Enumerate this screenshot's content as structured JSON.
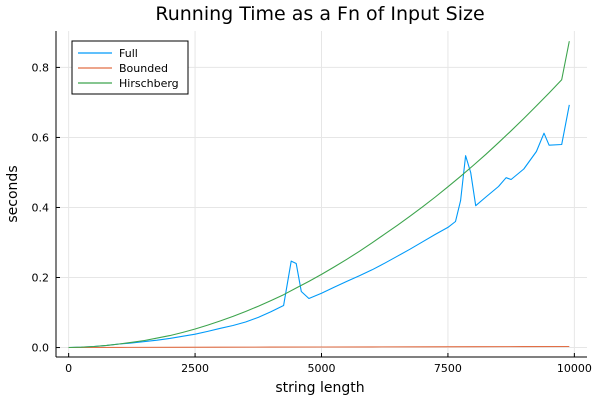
{
  "chart_data": {
    "type": "line",
    "title": "Running Time as a Fn of Input Size",
    "xlabel": "string length",
    "ylabel": "seconds",
    "xlim": [
      -250,
      10250
    ],
    "ylim": [
      -0.027,
      0.904
    ],
    "xticks": [
      0,
      2500,
      5000,
      7500,
      10000
    ],
    "xtick_labels": [
      "0",
      "2500",
      "5000",
      "7500",
      "10000"
    ],
    "yticks": [
      0.0,
      0.2,
      0.4,
      0.6,
      0.8
    ],
    "ytick_labels": [
      "0.0",
      "0.2",
      "0.4",
      "0.6",
      "0.8"
    ],
    "grid": true,
    "legend": "top-left",
    "series": [
      {
        "name": "Full",
        "color": "#009af9",
        "x": [
          0,
          250,
          500,
          750,
          1000,
          1250,
          1500,
          1750,
          2000,
          2250,
          2500,
          2750,
          3000,
          3250,
          3500,
          3750,
          4000,
          4250,
          4400,
          4500,
          4600,
          4750,
          5000,
          5250,
          5500,
          5750,
          6000,
          6250,
          6500,
          6750,
          7000,
          7250,
          7500,
          7650,
          7750,
          7850,
          7950,
          8050,
          8250,
          8500,
          8650,
          8750,
          9000,
          9250,
          9400,
          9500,
          9750,
          9900
        ],
        "y": [
          0.0,
          0.001,
          0.003,
          0.006,
          0.01,
          0.013,
          0.017,
          0.021,
          0.026,
          0.032,
          0.038,
          0.046,
          0.055,
          0.063,
          0.073,
          0.086,
          0.102,
          0.12,
          0.247,
          0.24,
          0.16,
          0.14,
          0.155,
          0.172,
          0.189,
          0.205,
          0.222,
          0.241,
          0.261,
          0.281,
          0.302,
          0.323,
          0.343,
          0.36,
          0.42,
          0.548,
          0.5,
          0.405,
          0.43,
          0.46,
          0.485,
          0.48,
          0.51,
          0.56,
          0.612,
          0.578,
          0.58,
          0.693
        ]
      },
      {
        "name": "Bounded",
        "color": "#e26f46",
        "x": [
          0,
          1000,
          2000,
          3000,
          4000,
          5000,
          6000,
          7000,
          8000,
          9000,
          9900
        ],
        "y": [
          0.0,
          0.0003,
          0.0006,
          0.0009,
          0.0012,
          0.0015,
          0.0018,
          0.0021,
          0.0024,
          0.0027,
          0.003
        ]
      },
      {
        "name": "Hirschberg",
        "color": "#3da44d",
        "x": [
          0,
          250,
          500,
          750,
          1000,
          1250,
          1500,
          1750,
          2000,
          2250,
          2500,
          2750,
          3000,
          3250,
          3500,
          3750,
          4000,
          4250,
          4500,
          4750,
          5000,
          5250,
          5500,
          5750,
          6000,
          6250,
          6500,
          6750,
          7000,
          7250,
          7500,
          7750,
          8000,
          8250,
          8500,
          8750,
          9000,
          9250,
          9500,
          9750,
          9900
        ],
        "y": [
          0.0,
          0.001,
          0.003,
          0.006,
          0.01,
          0.015,
          0.02,
          0.027,
          0.034,
          0.043,
          0.053,
          0.064,
          0.076,
          0.089,
          0.103,
          0.118,
          0.134,
          0.151,
          0.17,
          0.189,
          0.209,
          0.23,
          0.252,
          0.275,
          0.299,
          0.324,
          0.349,
          0.375,
          0.402,
          0.43,
          0.459,
          0.489,
          0.52,
          0.552,
          0.585,
          0.619,
          0.654,
          0.69,
          0.727,
          0.765,
          0.875
        ]
      }
    ]
  }
}
